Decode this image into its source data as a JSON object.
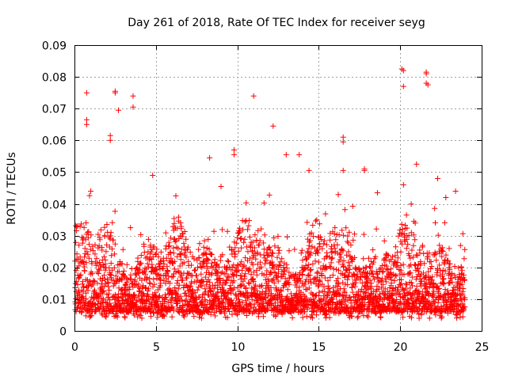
{
  "chart_data": {
    "type": "scatter",
    "title": "Day 261 of 2018, Rate Of TEC Index for receiver seyg",
    "xlabel": "GPS time / hours",
    "ylabel": "ROTI / TECUs",
    "xlim": [
      0,
      25
    ],
    "ylim": [
      0,
      0.09
    ],
    "xticks": [
      0,
      5,
      10,
      15,
      20,
      25
    ],
    "xtick_labels": [
      "0",
      "5",
      "10",
      "15",
      "20",
      "25"
    ],
    "yticks": [
      0,
      0.01,
      0.02,
      0.03,
      0.04,
      0.05,
      0.06,
      0.07,
      0.08,
      0.09
    ],
    "ytick_labels": [
      "0",
      "0.01",
      "0.02",
      "0.03",
      "0.04",
      "0.05",
      "0.06",
      "0.07",
      "0.08",
      "0.09"
    ],
    "grid": true,
    "marker": "+",
    "color": "#ff0000",
    "series": [
      {
        "name": "ROTI",
        "notable_points": [
          {
            "x": 0.75,
            "y": 0.075
          },
          {
            "x": 0.75,
            "y": 0.0665
          },
          {
            "x": 0.75,
            "y": 0.065
          },
          {
            "x": 2.5,
            "y": 0.0755
          },
          {
            "x": 2.5,
            "y": 0.075
          },
          {
            "x": 2.7,
            "y": 0.0695
          },
          {
            "x": 3.6,
            "y": 0.074
          },
          {
            "x": 3.6,
            "y": 0.0705
          },
          {
            "x": 2.2,
            "y": 0.0615
          },
          {
            "x": 2.2,
            "y": 0.06
          },
          {
            "x": 8.3,
            "y": 0.0545
          },
          {
            "x": 9.8,
            "y": 0.057
          },
          {
            "x": 9.8,
            "y": 0.0555
          },
          {
            "x": 11.0,
            "y": 0.074
          },
          {
            "x": 12.2,
            "y": 0.0645
          },
          {
            "x": 13.0,
            "y": 0.0555
          },
          {
            "x": 13.8,
            "y": 0.0555
          },
          {
            "x": 16.5,
            "y": 0.061
          },
          {
            "x": 16.5,
            "y": 0.0595
          },
          {
            "x": 16.5,
            "y": 0.0505
          },
          {
            "x": 17.8,
            "y": 0.051
          },
          {
            "x": 17.8,
            "y": 0.0505
          },
          {
            "x": 20.1,
            "y": 0.0825
          },
          {
            "x": 20.2,
            "y": 0.082
          },
          {
            "x": 20.2,
            "y": 0.077
          },
          {
            "x": 20.2,
            "y": 0.046
          },
          {
            "x": 21.0,
            "y": 0.0525
          },
          {
            "x": 21.6,
            "y": 0.0815
          },
          {
            "x": 21.6,
            "y": 0.081
          },
          {
            "x": 21.6,
            "y": 0.078
          },
          {
            "x": 21.7,
            "y": 0.0775
          },
          {
            "x": 22.3,
            "y": 0.048
          },
          {
            "x": 23.4,
            "y": 0.044
          },
          {
            "x": 1.0,
            "y": 0.044
          },
          {
            "x": 4.8,
            "y": 0.049
          },
          {
            "x": 9.0,
            "y": 0.0455
          },
          {
            "x": 14.4,
            "y": 0.0505
          },
          {
            "x": 18.6,
            "y": 0.0435
          },
          {
            "x": 22.8,
            "y": 0.042
          }
        ],
        "bulk": {
          "x_range": [
            0,
            24
          ],
          "y_typical_range": [
            0.004,
            0.03
          ],
          "density_note": "dense band of points throughout the day, most between 0.005 and 0.025 TECU, upper envelope 0.03-0.045"
        }
      }
    ]
  }
}
